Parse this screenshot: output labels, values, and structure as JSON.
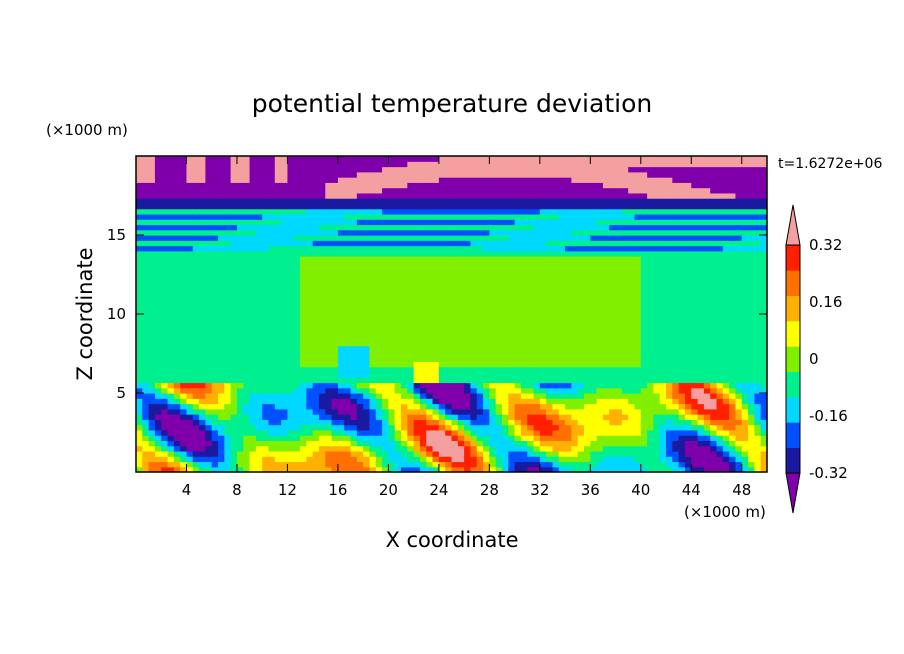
{
  "chart_data": {
    "type": "heatmap",
    "title": "potential temperature deviation",
    "xlabel": "X coordinate",
    "ylabel": "Z coordinate",
    "x_units": "(×1000 m)",
    "y_units": "(×1000 m)",
    "time_label": "t=1.6272e+06",
    "xlim": [
      0,
      50
    ],
    "ylim": [
      0,
      20
    ],
    "x_ticks": [
      4,
      8,
      12,
      16,
      20,
      24,
      28,
      32,
      36,
      40,
      44,
      48
    ],
    "y_ticks": [
      5,
      10,
      15
    ],
    "colorbar": {
      "levels": [
        -0.4,
        -0.32,
        -0.24,
        -0.16,
        -0.08,
        0,
        0.08,
        0.16,
        0.24,
        0.32,
        0.4
      ],
      "labels": [
        "0.32",
        "0.16",
        "0",
        "-0.16",
        "-0.32"
      ],
      "label_values": [
        0.32,
        0.16,
        0,
        -0.16,
        -0.32
      ],
      "colors": [
        "#7f00aa",
        "#1a1aa0",
        "#0050ff",
        "#00d8ff",
        "#00f090",
        "#80f000",
        "#ffff00",
        "#ffb000",
        "#ff7000",
        "#ff2000",
        "#f5a0a0"
      ]
    },
    "regions": [
      {
        "z": [
          17.5,
          19.6
        ],
        "x": [
          0,
          50
        ],
        "value": -0.36,
        "note": "upper layer mostly negative"
      },
      {
        "z": [
          16.6,
          19.6
        ],
        "x": [
          15,
          50
        ],
        "value": 0.45,
        "note": "positive streak"
      },
      {
        "z": [
          14.0,
          16.6
        ],
        "x": [
          0,
          50
        ],
        "value": -0.12
      },
      {
        "z": [
          5.6,
          14.0
        ],
        "x": [
          0,
          50
        ],
        "value": -0.04
      },
      {
        "z": [
          6.5,
          14.0
        ],
        "x": [
          13,
          40
        ],
        "value": 0.02
      },
      {
        "z": [
          0.0,
          5.6
        ],
        "x": [
          0,
          50
        ],
        "value": 0.0,
        "note": "strong alternating perturbations below 5.6 km"
      }
    ]
  }
}
